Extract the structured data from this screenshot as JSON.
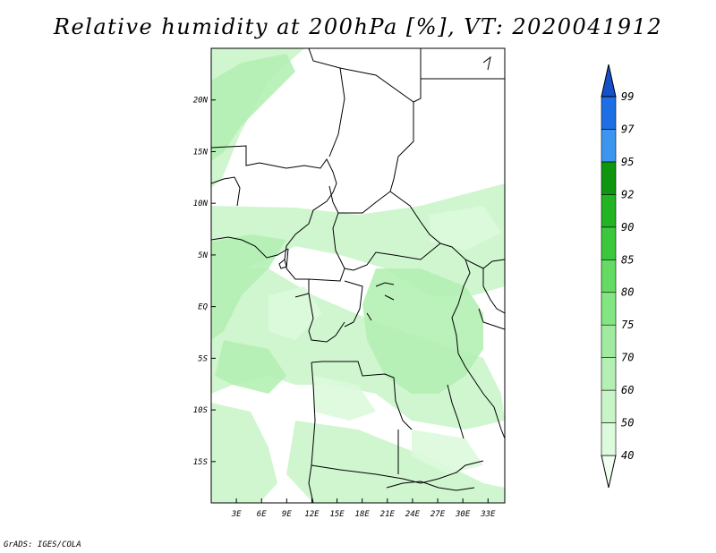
{
  "title": "Relative humidity at 200hPa [%], VT: 2020041912",
  "credit": "GrADS: IGES/COLA",
  "map": {
    "lat_range": [
      -19,
      25
    ],
    "lon_range": [
      0,
      35
    ],
    "lat_ticks": [
      {
        "value": 20,
        "label": "20N"
      },
      {
        "value": 15,
        "label": "15N"
      },
      {
        "value": 10,
        "label": "10N"
      },
      {
        "value": 5,
        "label": "5N"
      },
      {
        "value": 0,
        "label": "EQ"
      },
      {
        "value": -5,
        "label": "5S"
      },
      {
        "value": -10,
        "label": "10S"
      },
      {
        "value": -15,
        "label": "15S"
      }
    ],
    "lon_ticks": [
      {
        "value": 3,
        "label": "3E"
      },
      {
        "value": 6,
        "label": "6E"
      },
      {
        "value": 9,
        "label": "9E"
      },
      {
        "value": 12,
        "label": "12E"
      },
      {
        "value": 15,
        "label": "15E"
      },
      {
        "value": 18,
        "label": "18E"
      },
      {
        "value": 21,
        "label": "21E"
      },
      {
        "value": 24,
        "label": "24E"
      },
      {
        "value": 27,
        "label": "27E"
      },
      {
        "value": 30,
        "label": "30E"
      },
      {
        "value": 33,
        "label": "33E"
      }
    ]
  },
  "colorbar": {
    "levels": [
      "40",
      "50",
      "60",
      "70",
      "75",
      "80",
      "85",
      "90",
      "92",
      "95",
      "97",
      "99"
    ],
    "colors": [
      "#f0fff0",
      "#dcfadc",
      "#c8f5c8",
      "#b4f0b4",
      "#a0eba0",
      "#82e682",
      "#64dc64",
      "#3cc83c",
      "#23b423",
      "#0f960f",
      "#3c96f0",
      "#1e6ee6",
      "#1450c8"
    ]
  }
}
